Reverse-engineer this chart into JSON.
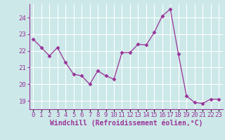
{
  "x": [
    0,
    1,
    2,
    3,
    4,
    5,
    6,
    7,
    8,
    9,
    10,
    11,
    12,
    13,
    14,
    15,
    16,
    17,
    18,
    19,
    20,
    21,
    22,
    23
  ],
  "y": [
    22.7,
    22.2,
    21.7,
    22.2,
    21.3,
    20.6,
    20.5,
    20.0,
    20.8,
    20.5,
    20.3,
    21.9,
    21.9,
    22.4,
    22.35,
    23.1,
    24.1,
    24.5,
    21.8,
    19.3,
    18.9,
    18.85,
    19.1,
    19.1
  ],
  "line_color": "#993399",
  "marker": "D",
  "marker_size": 2.5,
  "bg_color": "#cce8e8",
  "grid_color": "#ffffff",
  "xlabel": "Windchill (Refroidissement éolien,°C)",
  "xlabel_color": "#993399",
  "tick_color": "#993399",
  "ylim": [
    18.5,
    24.8
  ],
  "yticks": [
    19,
    20,
    21,
    22,
    23,
    24
  ],
  "xticks": [
    0,
    1,
    2,
    3,
    4,
    5,
    6,
    7,
    8,
    9,
    10,
    11,
    12,
    13,
    14,
    15,
    16,
    17,
    18,
    19,
    20,
    21,
    22,
    23
  ],
  "xtick_labels": [
    "0",
    "1",
    "2",
    "3",
    "4",
    "5",
    "6",
    "7",
    "8",
    "9",
    "10",
    "11",
    "12",
    "13",
    "14",
    "15",
    "16",
    "17",
    "18",
    "19",
    "20",
    "21",
    "22",
    "23"
  ],
  "tick_fontsize": 6.5,
  "xlabel_fontsize": 7.0
}
